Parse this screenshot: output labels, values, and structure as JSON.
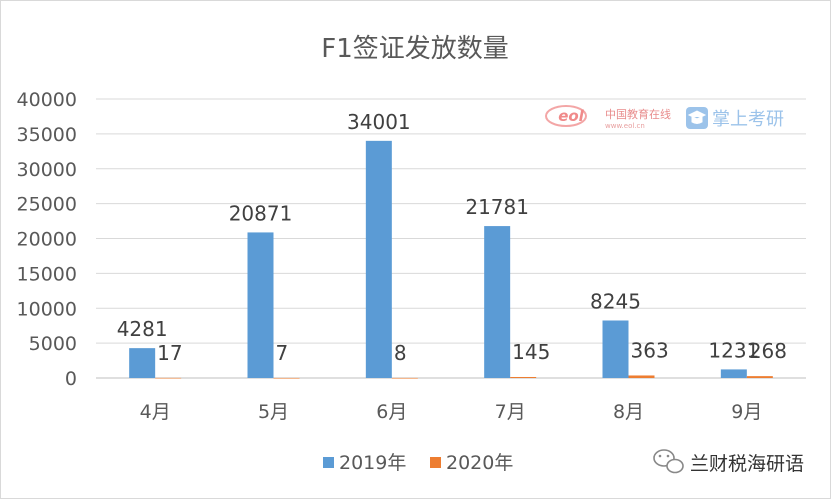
{
  "chart_data": {
    "type": "bar",
    "title": "F1签证发放数量",
    "categories": [
      "4月",
      "5月",
      "6月",
      "7月",
      "8月",
      "9月"
    ],
    "series": [
      {
        "name": "2019年",
        "color": "#5b9bd5",
        "values": [
          4281,
          20871,
          34001,
          21781,
          8245,
          1231
        ]
      },
      {
        "name": "2020年",
        "color": "#ed7d31",
        "values": [
          17,
          7,
          8,
          145,
          363,
          268
        ]
      }
    ],
    "ylim": [
      0,
      40000
    ],
    "yticks": [
      0,
      5000,
      10000,
      15000,
      20000,
      25000,
      30000,
      35000,
      40000
    ],
    "xlabel": "",
    "ylabel": "",
    "grid": true,
    "legend": "bottom"
  },
  "watermarks": {
    "eol_logo": "eol",
    "eol_text": "中国教育在线",
    "eol_url": "www.eol.cn",
    "kaoyan_text": "掌上考研",
    "kaoyan_icon": "mortarboard-icon",
    "wechat_icon": "wechat-icon",
    "wechat_account": "兰财税海研语"
  }
}
